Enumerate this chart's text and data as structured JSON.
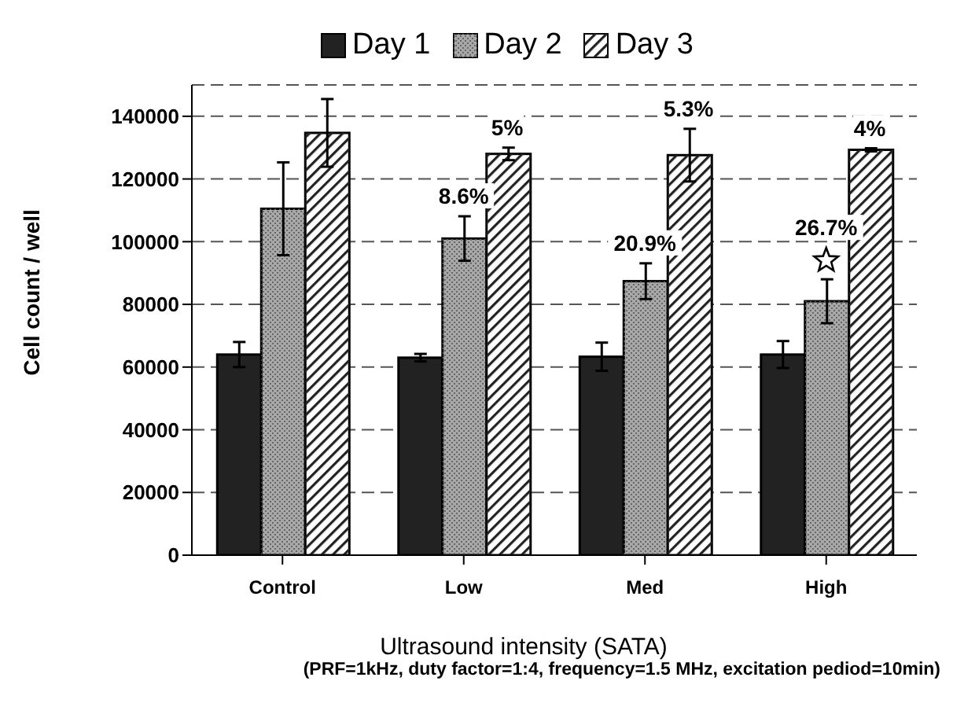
{
  "chart_data": {
    "type": "bar",
    "xlabel": "Ultrasound intensity (SATA)",
    "ylabel": "Cell count / well",
    "categories": [
      "Control",
      "Low",
      "Med",
      "High"
    ],
    "series": [
      {
        "name": "Day 1",
        "color": "#222222",
        "values": [
          64000,
          63000,
          63300,
          64000
        ],
        "errors": [
          4000,
          1200,
          4500,
          4300
        ]
      },
      {
        "name": "Day 2",
        "color": "#a8a8a8",
        "values": [
          110500,
          101000,
          87400,
          81000
        ],
        "errors": [
          14800,
          7100,
          5700,
          7000
        ]
      },
      {
        "name": "Day 3",
        "color": "#ffffff",
        "values": [
          134700,
          128000,
          127600,
          129300
        ],
        "errors": [
          10800,
          2000,
          8400,
          500
        ]
      }
    ],
    "ylim": [
      0,
      150000
    ],
    "yticks": [
      0,
      20000,
      40000,
      60000,
      80000,
      100000,
      120000,
      140000
    ],
    "grid": "y",
    "legend": "top",
    "annotations": [
      {
        "text": "8.6%",
        "x": "Low",
        "y": 101000
      },
      "5%",
      {
        "text": "20.9%",
        "x": "Med",
        "y": 87400
      },
      "5.3%",
      {
        "text": "26.7%",
        "x": "High",
        "y": 81000
      },
      "4%",
      "(PRF=1kHz, duty factor=1:4, frequency=1.5 MHz, excitation pediod=10min)"
    ]
  }
}
